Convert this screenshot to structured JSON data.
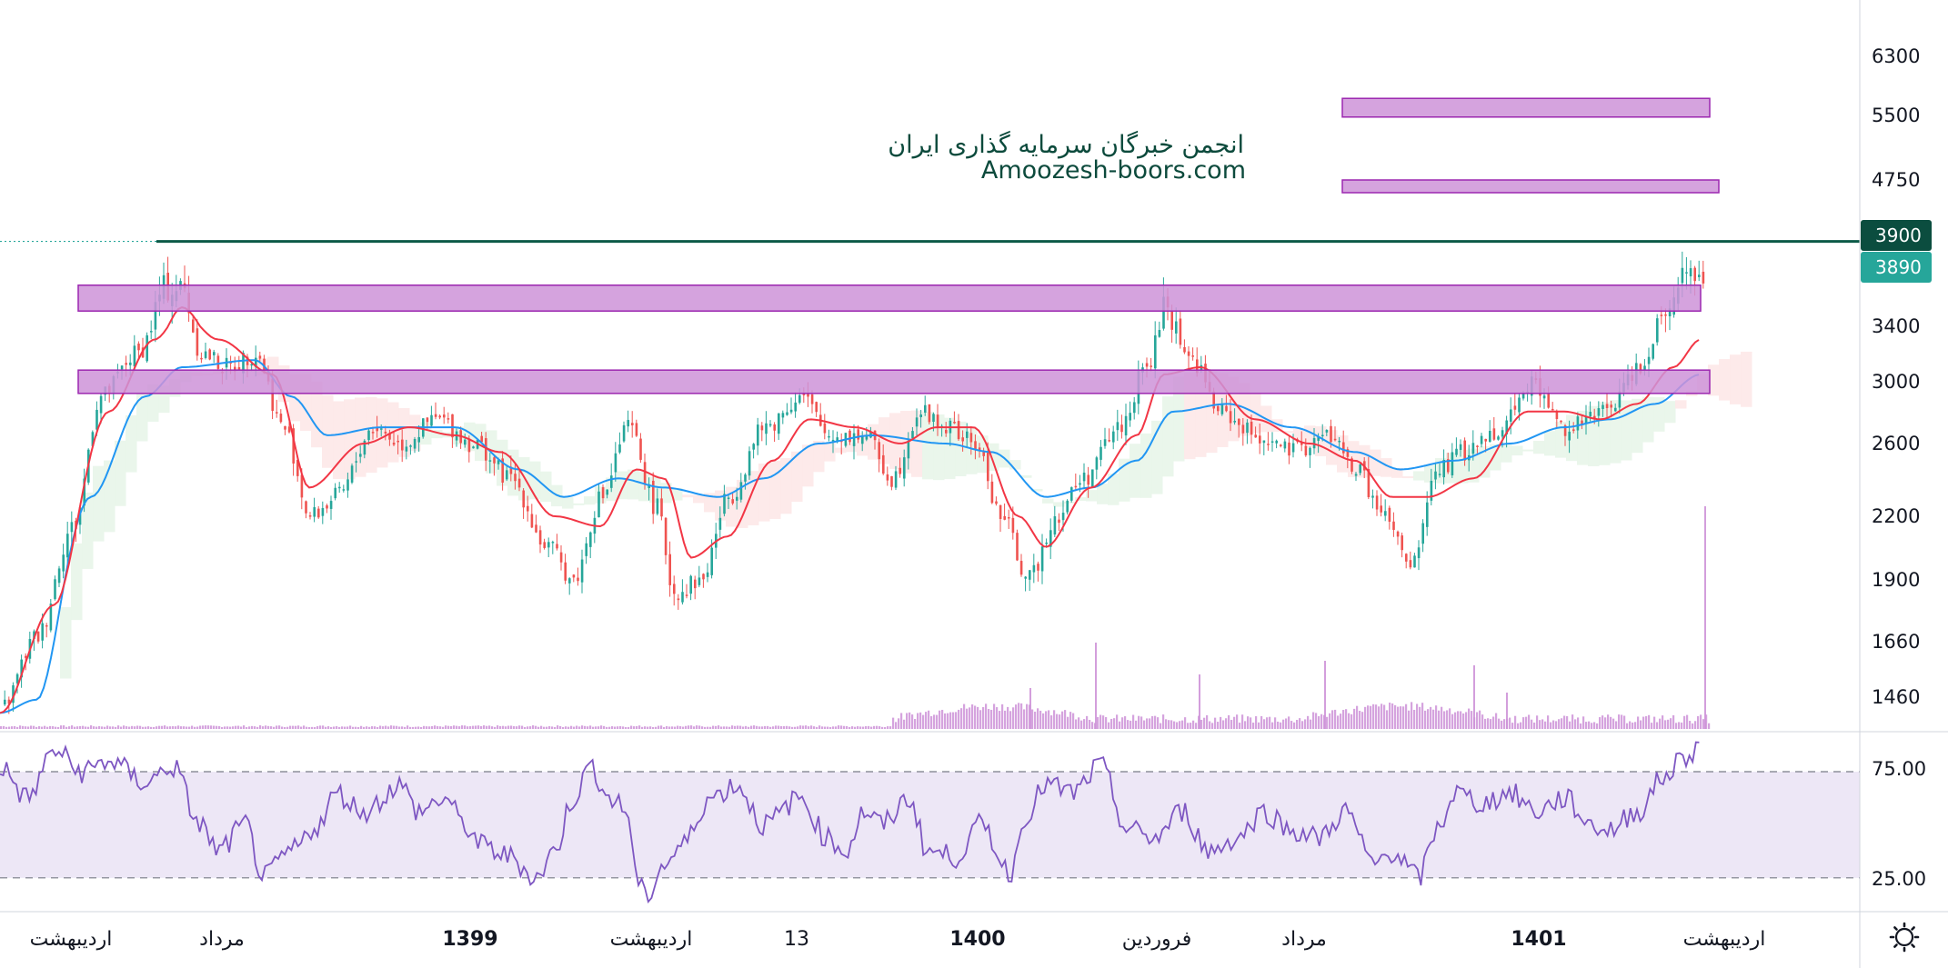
{
  "watermark": {
    "line1": "انجمن خبرگان سرمایه گذاری ایران",
    "line2": "Amoozesh-boors.com"
  },
  "colors": {
    "candle_up": "#26a69a",
    "candle_down": "#ef5350",
    "ma_fast": "#f23645",
    "ma_slow": "#2196f3",
    "zone_fill": "#ce93d8",
    "zone_stroke": "#9c27b0",
    "volume": "#ce93d8",
    "rsi_line": "#7e57c2",
    "rsi_band": "#ede7f6",
    "resistance_line": "#0c5a47",
    "tag_dark": "#0b4d3f",
    "tag_teal": "#26a69a",
    "cloud_green": "#e8f5e9",
    "cloud_red": "#fde8e8"
  },
  "settings_icon": "gear-icon",
  "chart_data": [
    {
      "type": "candlestick",
      "title": "",
      "price_axis_labels": [
        "6300",
        "5500",
        "4750",
        "3900",
        "3890",
        "3400",
        "3000",
        "2600",
        "2200",
        "1900",
        "1660",
        "1460"
      ],
      "price_tags": [
        {
          "value": 3900,
          "label": "3900",
          "style": "dark"
        },
        {
          "value": 3890,
          "label": "3890",
          "style": "teal"
        }
      ],
      "time_axis_labels": [
        {
          "label": "اردیبهشت",
          "bold": false
        },
        {
          "label": "مرداد",
          "bold": false
        },
        {
          "label": "1399",
          "bold": true
        },
        {
          "label": "اردیبهشت",
          "bold": false
        },
        {
          "label": "13",
          "bold": false
        },
        {
          "label": "1400",
          "bold": true
        },
        {
          "label": "فروردین",
          "bold": false
        },
        {
          "label": "مرداد",
          "bold": false
        },
        {
          "label": "1401",
          "bold": true
        },
        {
          "label": "اردیبهشت",
          "bold": false
        }
      ],
      "resistance_line": 3870,
      "zones": [
        {
          "low": 5480,
          "high": 5720,
          "from_index": 0.735,
          "to_index": 0.94
        },
        {
          "low": 4620,
          "high": 4750,
          "from_index": 0.735,
          "to_index": 0.945
        },
        {
          "low": 3480,
          "high": 3620,
          "from_index": 0.04,
          "to_index": 0.935
        },
        {
          "low": 2920,
          "high": 3080,
          "from_index": 0.04,
          "to_index": 0.94
        }
      ],
      "price_keypoints": [
        [
          0.0,
          1420
        ],
        [
          0.02,
          1680
        ],
        [
          0.04,
          2150
        ],
        [
          0.055,
          2900
        ],
        [
          0.075,
          3200
        ],
        [
          0.09,
          3600
        ],
        [
          0.1,
          3600
        ],
        [
          0.11,
          3200
        ],
        [
          0.125,
          3100
        ],
        [
          0.14,
          3200
        ],
        [
          0.155,
          2700
        ],
        [
          0.17,
          2200
        ],
        [
          0.185,
          2300
        ],
        [
          0.205,
          2700
        ],
        [
          0.22,
          2600
        ],
        [
          0.24,
          2750
        ],
        [
          0.26,
          2600
        ],
        [
          0.28,
          2400
        ],
        [
          0.3,
          2050
        ],
        [
          0.315,
          1900
        ],
        [
          0.33,
          2300
        ],
        [
          0.345,
          2700
        ],
        [
          0.36,
          2250
        ],
        [
          0.37,
          1850
        ],
        [
          0.385,
          1900
        ],
        [
          0.4,
          2300
        ],
        [
          0.42,
          2700
        ],
        [
          0.44,
          2900
        ],
        [
          0.455,
          2650
        ],
        [
          0.475,
          2650
        ],
        [
          0.49,
          2400
        ],
        [
          0.505,
          2800
        ],
        [
          0.52,
          2700
        ],
        [
          0.535,
          2600
        ],
        [
          0.55,
          2200
        ],
        [
          0.565,
          1900
        ],
        [
          0.58,
          2200
        ],
        [
          0.595,
          2400
        ],
        [
          0.615,
          2700
        ],
        [
          0.63,
          3100
        ],
        [
          0.64,
          3500
        ],
        [
          0.655,
          3150
        ],
        [
          0.67,
          2800
        ],
        [
          0.69,
          2650
        ],
        [
          0.71,
          2550
        ],
        [
          0.73,
          2650
        ],
        [
          0.745,
          2450
        ],
        [
          0.76,
          2200
        ],
        [
          0.775,
          1950
        ],
        [
          0.79,
          2450
        ],
        [
          0.805,
          2550
        ],
        [
          0.825,
          2700
        ],
        [
          0.84,
          3000
        ],
        [
          0.86,
          2700
        ],
        [
          0.875,
          2750
        ],
        [
          0.885,
          2850
        ],
        [
          0.9,
          3100
        ],
        [
          0.915,
          3500
        ],
        [
          0.925,
          3700
        ],
        [
          0.935,
          3650
        ]
      ],
      "ma_fast_keypoints": [
        [
          0.0,
          1400
        ],
        [
          0.03,
          1800
        ],
        [
          0.06,
          2800
        ],
        [
          0.085,
          3300
        ],
        [
          0.1,
          3500
        ],
        [
          0.12,
          3300
        ],
        [
          0.15,
          3050
        ],
        [
          0.17,
          2350
        ],
        [
          0.2,
          2600
        ],
        [
          0.225,
          2700
        ],
        [
          0.25,
          2650
        ],
        [
          0.275,
          2550
        ],
        [
          0.305,
          2200
        ],
        [
          0.33,
          2150
        ],
        [
          0.35,
          2450
        ],
        [
          0.365,
          2400
        ],
        [
          0.38,
          2000
        ],
        [
          0.4,
          2100
        ],
        [
          0.425,
          2500
        ],
        [
          0.445,
          2750
        ],
        [
          0.47,
          2700
        ],
        [
          0.495,
          2600
        ],
        [
          0.515,
          2700
        ],
        [
          0.535,
          2700
        ],
        [
          0.56,
          2200
        ],
        [
          0.575,
          2050
        ],
        [
          0.6,
          2350
        ],
        [
          0.625,
          2650
        ],
        [
          0.64,
          3050
        ],
        [
          0.66,
          3100
        ],
        [
          0.69,
          2750
        ],
        [
          0.72,
          2600
        ],
        [
          0.745,
          2500
        ],
        [
          0.765,
          2300
        ],
        [
          0.785,
          2300
        ],
        [
          0.81,
          2400
        ],
        [
          0.84,
          2800
        ],
        [
          0.86,
          2800
        ],
        [
          0.88,
          2750
        ],
        [
          0.9,
          2850
        ],
        [
          0.92,
          3100
        ],
        [
          0.935,
          3300
        ]
      ],
      "ma_slow_keypoints": [
        [
          0.0,
          1400
        ],
        [
          0.02,
          1450
        ],
        [
          0.05,
          2300
        ],
        [
          0.08,
          2900
        ],
        [
          0.1,
          3100
        ],
        [
          0.14,
          3150
        ],
        [
          0.16,
          2900
        ],
        [
          0.18,
          2650
        ],
        [
          0.21,
          2700
        ],
        [
          0.25,
          2700
        ],
        [
          0.285,
          2450
        ],
        [
          0.31,
          2300
        ],
        [
          0.34,
          2400
        ],
        [
          0.365,
          2350
        ],
        [
          0.395,
          2300
        ],
        [
          0.42,
          2400
        ],
        [
          0.45,
          2600
        ],
        [
          0.48,
          2650
        ],
        [
          0.52,
          2600
        ],
        [
          0.545,
          2550
        ],
        [
          0.575,
          2300
        ],
        [
          0.6,
          2350
        ],
        [
          0.625,
          2500
        ],
        [
          0.645,
          2800
        ],
        [
          0.675,
          2850
        ],
        [
          0.71,
          2700
        ],
        [
          0.745,
          2550
        ],
        [
          0.77,
          2450
        ],
        [
          0.8,
          2500
        ],
        [
          0.83,
          2600
        ],
        [
          0.86,
          2700
        ],
        [
          0.885,
          2750
        ],
        [
          0.91,
          2850
        ],
        [
          0.935,
          3050
        ]
      ],
      "volume_spikes": [
        {
          "at": 0.566,
          "size": 0.18
        },
        {
          "at": 0.602,
          "size": 0.38
        },
        {
          "at": 0.659,
          "size": 0.24
        },
        {
          "at": 0.728,
          "size": 0.3
        },
        {
          "at": 0.81,
          "size": 0.28
        },
        {
          "at": 0.828,
          "size": 0.16
        },
        {
          "at": 0.937,
          "size": 0.98
        }
      ]
    },
    {
      "type": "line",
      "title": "",
      "ylabels": [
        "75.00",
        "25.00"
      ],
      "band": [
        30,
        70
      ],
      "ylim": [
        20,
        82
      ],
      "rsi_keypoints": [
        [
          0.0,
          72
        ],
        [
          0.015,
          60
        ],
        [
          0.03,
          78
        ],
        [
          0.045,
          70
        ],
        [
          0.06,
          74
        ],
        [
          0.08,
          66
        ],
        [
          0.095,
          72
        ],
        [
          0.11,
          50
        ],
        [
          0.12,
          40
        ],
        [
          0.135,
          50
        ],
        [
          0.145,
          30
        ],
        [
          0.16,
          40
        ],
        [
          0.175,
          50
        ],
        [
          0.185,
          62
        ],
        [
          0.2,
          55
        ],
        [
          0.22,
          65
        ],
        [
          0.23,
          55
        ],
        [
          0.245,
          60
        ],
        [
          0.255,
          50
        ],
        [
          0.265,
          42
        ],
        [
          0.28,
          38
        ],
        [
          0.295,
          30
        ],
        [
          0.305,
          40
        ],
        [
          0.315,
          60
        ],
        [
          0.325,
          72
        ],
        [
          0.335,
          60
        ],
        [
          0.345,
          55
        ],
        [
          0.35,
          30
        ],
        [
          0.355,
          22
        ],
        [
          0.365,
          35
        ],
        [
          0.375,
          42
        ],
        [
          0.39,
          60
        ],
        [
          0.405,
          65
        ],
        [
          0.42,
          50
        ],
        [
          0.44,
          60
        ],
        [
          0.455,
          45
        ],
        [
          0.465,
          40
        ],
        [
          0.475,
          55
        ],
        [
          0.485,
          50
        ],
        [
          0.5,
          60
        ],
        [
          0.51,
          40
        ],
        [
          0.525,
          38
        ],
        [
          0.54,
          50
        ],
        [
          0.555,
          32
        ],
        [
          0.565,
          55
        ],
        [
          0.575,
          65
        ],
        [
          0.59,
          62
        ],
        [
          0.605,
          72
        ],
        [
          0.62,
          48
        ],
        [
          0.635,
          45
        ],
        [
          0.65,
          55
        ],
        [
          0.665,
          40
        ],
        [
          0.68,
          45
        ],
        [
          0.695,
          55
        ],
        [
          0.71,
          48
        ],
        [
          0.725,
          45
        ],
        [
          0.74,
          55
        ],
        [
          0.755,
          35
        ],
        [
          0.765,
          40
        ],
        [
          0.78,
          30
        ],
        [
          0.79,
          48
        ],
        [
          0.8,
          62
        ],
        [
          0.815,
          58
        ],
        [
          0.83,
          62
        ],
        [
          0.845,
          55
        ],
        [
          0.86,
          60
        ],
        [
          0.875,
          50
        ],
        [
          0.885,
          48
        ],
        [
          0.9,
          55
        ],
        [
          0.915,
          68
        ],
        [
          0.925,
          75
        ],
        [
          0.935,
          80
        ]
      ]
    }
  ]
}
